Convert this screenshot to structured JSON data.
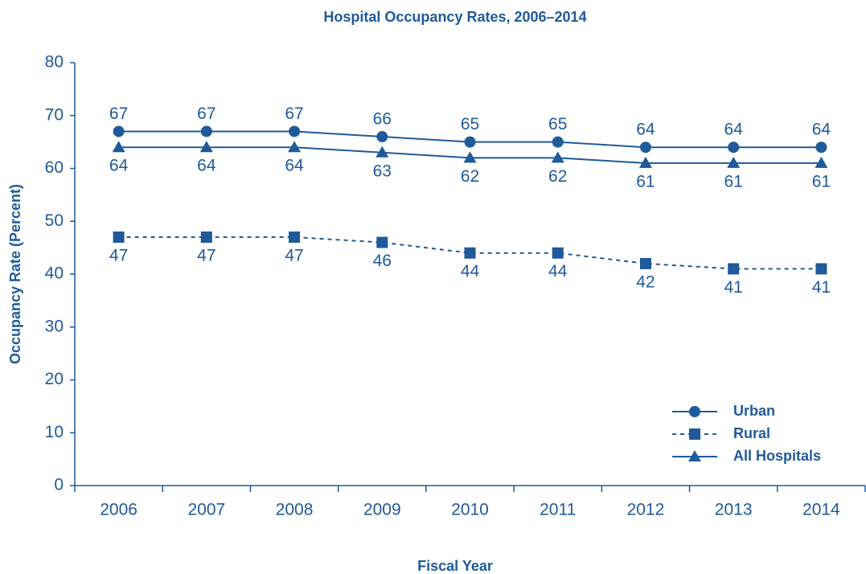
{
  "chart_data": {
    "type": "line",
    "title": "Hospital Occupancy Rates, 2006–2014",
    "x_label": "Fiscal Year",
    "y_label": "Occupancy Rate (Percent)",
    "categories": [
      "2006",
      "2007",
      "2008",
      "2009",
      "2010",
      "2011",
      "2012",
      "2013",
      "2014"
    ],
    "series": [
      {
        "name": "Urban",
        "color": "#1f5a9a",
        "marker": "circle",
        "dashed": false,
        "label_position": "above",
        "values": [
          67,
          67,
          67,
          66,
          65,
          65,
          64,
          64,
          64
        ]
      },
      {
        "name": "Rural",
        "color": "#1f5a9a",
        "marker": "square",
        "dashed": true,
        "label_position": "below",
        "values": [
          47,
          47,
          47,
          46,
          44,
          44,
          42,
          41,
          41
        ]
      },
      {
        "name": "All Hospitals",
        "color": "#1f5a9a",
        "marker": "triangle",
        "dashed": false,
        "label_position": "below",
        "values": [
          64,
          64,
          64,
          63,
          62,
          62,
          61,
          61,
          61
        ]
      }
    ],
    "ylim": [
      0,
      80
    ],
    "yticks": [
      0,
      10,
      20,
      30,
      40,
      50,
      60,
      70,
      80
    ],
    "grid": false,
    "legend": "lower right"
  }
}
